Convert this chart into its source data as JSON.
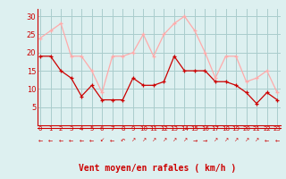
{
  "x": [
    0,
    1,
    2,
    3,
    4,
    5,
    6,
    7,
    8,
    9,
    10,
    11,
    12,
    13,
    14,
    15,
    16,
    17,
    18,
    19,
    20,
    21,
    22,
    23
  ],
  "y_moyen": [
    19,
    19,
    15,
    13,
    8,
    11,
    7,
    7,
    7,
    13,
    11,
    11,
    12,
    19,
    15,
    15,
    15,
    12,
    12,
    11,
    9,
    6,
    9,
    7
  ],
  "y_rafales": [
    24,
    26,
    28,
    19,
    19,
    15,
    9,
    19,
    19,
    20,
    25,
    19,
    25,
    28,
    30,
    26,
    20,
    13,
    19,
    19,
    12,
    13,
    15,
    9
  ],
  "bg_color": "#ddf0f0",
  "grid_color": "#aacccc",
  "line_color_moyen": "#cc0000",
  "line_color_rafales": "#ffaaaa",
  "xlabel": "Vent moyen/en rafales ( km/h )",
  "xlabel_color": "#cc0000",
  "tick_color": "#cc0000",
  "axis_color": "#cc0000",
  "ylim": [
    0,
    32
  ],
  "yticks": [
    5,
    10,
    15,
    20,
    25,
    30
  ],
  "xlim": [
    -0.3,
    23.3
  ],
  "arrow_chars": [
    "←",
    "←",
    "←",
    "←",
    "←",
    "←",
    "↙",
    "←",
    "↶",
    "↗",
    "↗",
    "↗",
    "↗",
    "↗",
    "↗",
    "→",
    "→",
    "↗",
    "↗",
    "↗",
    "↗",
    "↗",
    "←",
    "←"
  ]
}
